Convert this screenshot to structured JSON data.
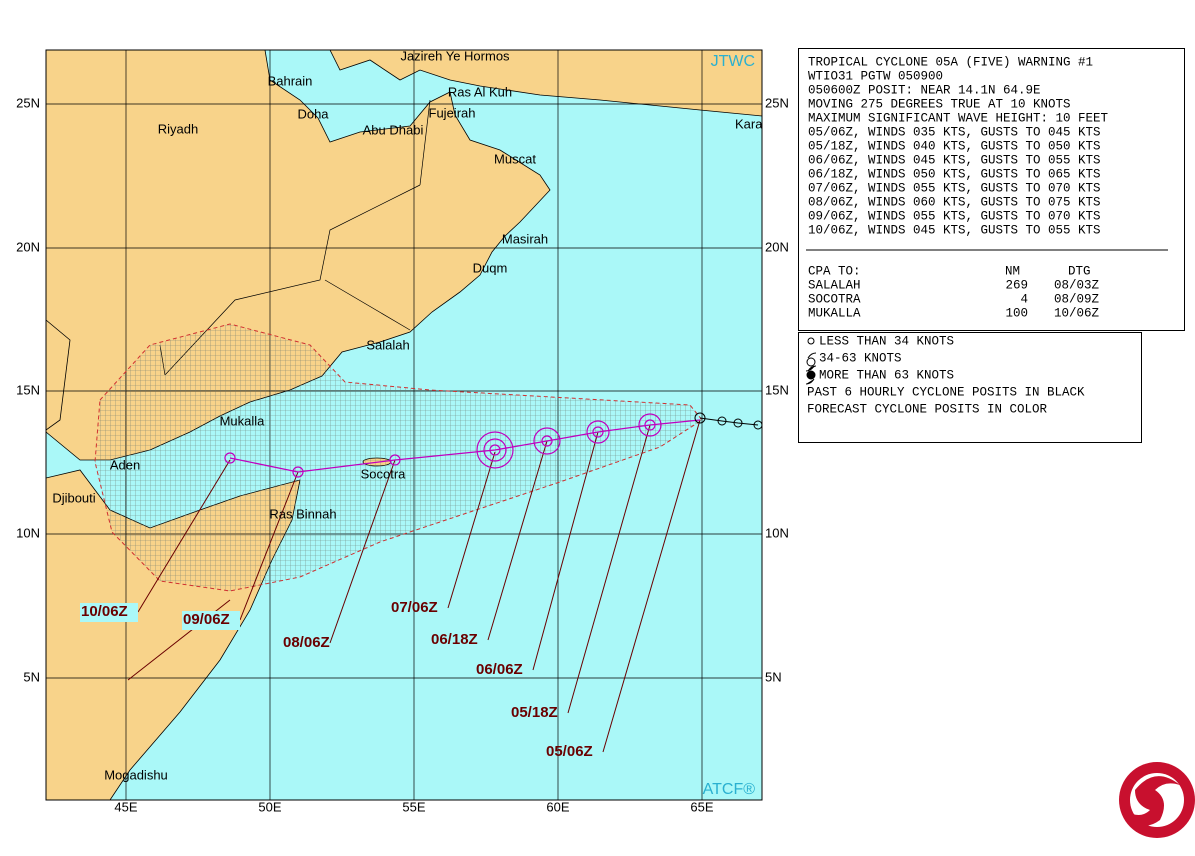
{
  "map": {
    "source": "JTWC",
    "footer": "ATCF®",
    "lat_labels": [
      "25N",
      "20N",
      "15N",
      "10N",
      "5N"
    ],
    "lon_labels": [
      "45E",
      "50E",
      "55E",
      "60E",
      "65E"
    ],
    "places": [
      "Jazireh Ye Hormos",
      "Bahrain",
      "Riyadh",
      "Doha",
      "Ras Al Kuh",
      "Fujeirah",
      "Abu Dhabi",
      "Kara",
      "Muscat",
      "Masirah",
      "Duqm",
      "Salalah",
      "Mukalla",
      "Aden",
      "Socotra",
      "Djibouti",
      "Ras Binnah",
      "Mogadishu"
    ],
    "forecast_labels": [
      "10/06Z",
      "09/06Z",
      "08/06Z",
      "07/06Z",
      "06/18Z",
      "06/06Z",
      "05/18Z",
      "05/06Z"
    ]
  },
  "warning": {
    "lines": [
      "TROPICAL CYCLONE 05A (FIVE) WARNING #1",
      "WTIO31 PGTW 050900",
      "050600Z POSIT: NEAR 14.1N 64.9E",
      "MOVING 275 DEGREES TRUE AT 10 KNOTS",
      "MAXIMUM SIGNIFICANT WAVE HEIGHT: 10 FEET",
      "05/06Z, WINDS 035 KTS, GUSTS TO 045 KTS",
      "05/18Z, WINDS 040 KTS, GUSTS TO 050 KTS",
      "06/06Z, WINDS 045 KTS, GUSTS TO 055 KTS",
      "06/18Z, WINDS 050 KTS, GUSTS TO 065 KTS",
      "07/06Z, WINDS 055 KTS, GUSTS TO 070 KTS",
      "08/06Z, WINDS 060 KTS, GUSTS TO 075 KTS",
      "09/06Z, WINDS 055 KTS, GUSTS TO 070 KTS",
      "10/06Z, WINDS 045 KTS, GUSTS TO 055 KTS"
    ]
  },
  "cpa": {
    "header": [
      "CPA TO:",
      "NM",
      "DTG"
    ],
    "rows": [
      [
        "SALALAH",
        "269",
        "08/03Z"
      ],
      [
        "SOCOTRA",
        "4",
        "08/09Z"
      ],
      [
        "MUKALLA",
        "100",
        "10/06Z"
      ]
    ]
  },
  "legend": [
    "LESS THAN 34 KNOTS",
    "34-63 KNOTS",
    "MORE THAN 63 KNOTS",
    "PAST 6 HOURLY CYCLONE POSITS IN BLACK",
    "FORECAST CYCLONE POSITS IN COLOR"
  ]
}
